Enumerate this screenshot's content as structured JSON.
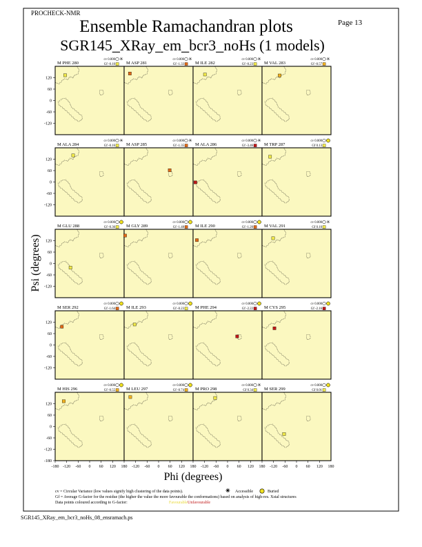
{
  "header": {
    "program": "PROCHECK-NMR",
    "page_label": "Page 13",
    "title": "Ensemble Ramachandran plots",
    "subtitle": "SGR145_XRay_em_bcr3_noHs (1 models)"
  },
  "footer": {
    "filename": "SGR145_XRay_em_bcr3_noHs_08_ensramach.ps",
    "legend_line1": "cv = Circular Variance (low values signify high clustering of the data points).",
    "legend_accessible": "Accessible",
    "legend_buried": "Buried",
    "legend_line2": "Gf = Average G-factor for the residue (the higher the value the more favourable the conformations) based on analysis of high-res. Xstal structures",
    "legend_line3": "Data points coloured according to G-factor:",
    "legend_favourable": "Favourable",
    "legend_unfavourable": "Unfavourable"
  },
  "colors": {
    "panel_bg": "#fbf8c0",
    "favourable": "#f0e84a",
    "unfavourable": "#c01818",
    "accessible_symbol": "#000000",
    "buried_symbol": "#f0e020",
    "region_outline": "#000000"
  },
  "chart_data": {
    "type": "scatter",
    "xlabel": "Phi (degrees)",
    "ylabel": "Psi (degrees)",
    "xlim": [
      -180,
      180
    ],
    "ylim": [
      -180,
      180
    ],
    "x_ticks": [
      "-180",
      "-120",
      "-60",
      "0",
      "60",
      "120",
      "180"
    ],
    "y_ticks": [
      "120",
      "60",
      "0",
      "-60",
      "-120"
    ],
    "y_ticks_bottom": [
      "120",
      "60",
      "0",
      "-60",
      "-120",
      "-180"
    ],
    "grid": false,
    "cv_label": "cv 0.000",
    "panels": [
      {
        "residue": "M PHE 280",
        "gf": "Gf -0.10",
        "gf_value": -0.1,
        "buried": false,
        "point": {
          "phi": -128,
          "psi": 133
        }
      },
      {
        "residue": "M ASP 281",
        "gf": "Gf -1.33",
        "gf_value": -1.33,
        "buried": false,
        "point": {
          "phi": -150,
          "psi": 142
        }
      },
      {
        "residue": "M ILE 282",
        "gf": "Gf -0.23",
        "gf_value": -0.23,
        "buried": false,
        "point": {
          "phi": -118,
          "psi": 137
        }
      },
      {
        "residue": "M VAL 283",
        "gf": "Gf -0.57",
        "gf_value": -0.57,
        "buried": false,
        "point": {
          "phi": -88,
          "psi": 132
        }
      },
      {
        "residue": "M ALA 284",
        "gf": "Gf -0.16",
        "gf_value": -0.16,
        "buried": false,
        "point": {
          "phi": -86,
          "psi": 140
        }
      },
      {
        "residue": "M ASP 285",
        "gf": "Gf -1.35",
        "gf_value": -1.35,
        "buried": false,
        "point": {
          "phi": 58,
          "psi": 62
        }
      },
      {
        "residue": "M ALA 286",
        "gf": "Gf -3.46",
        "gf_value": -3.46,
        "buried": false,
        "point": {
          "phi": -168,
          "psi": -2
        }
      },
      {
        "residue": "M TRP 287",
        "gf": "Gf 0.13",
        "gf_value": 0.13,
        "buried": true,
        "point": {
          "phi": -138,
          "psi": 133
        }
      },
      {
        "residue": "M GLU 288",
        "gf": "Gf -0.36",
        "gf_value": -0.36,
        "buried": true,
        "point": {
          "phi": -100,
          "psi": -22
        }
      },
      {
        "residue": "M GLY 289",
        "gf": "Gf -1.48",
        "gf_value": -1.48,
        "buried": true,
        "point": {
          "phi": -175,
          "psi": 147
        }
      },
      {
        "residue": "M ILE 290",
        "gf": "Gf -1.20",
        "gf_value": -1.2,
        "buried": true,
        "point": {
          "phi": -160,
          "psi": 123
        }
      },
      {
        "residue": "M VAL 291",
        "gf": "Gf 0.10",
        "gf_value": 0.1,
        "buried": false,
        "point": {
          "phi": -122,
          "psi": 133
        }
      },
      {
        "residue": "M SER 292",
        "gf": "Gf -1.64",
        "gf_value": -1.64,
        "buried": true,
        "point": {
          "phi": -145,
          "psi": 96
        }
      },
      {
        "residue": "M ILE 293",
        "gf": "Gf -0.23",
        "gf_value": -0.23,
        "buried": true,
        "point": {
          "phi": -125,
          "psi": 108
        }
      },
      {
        "residue": "M PHE 294",
        "gf": "Gf -2.22",
        "gf_value": -2.22,
        "buried": true,
        "point": {
          "phi": 50,
          "psi": 45
        }
      },
      {
        "residue": "M CYS 295",
        "gf": "Gf -2.16",
        "gf_value": -2.16,
        "buried": true,
        "point": {
          "phi": -115,
          "psi": 88
        }
      },
      {
        "residue": "M HIS 296",
        "gf": "Gf -0.55",
        "gf_value": -0.55,
        "buried": true,
        "point": {
          "phi": -135,
          "psi": 133
        }
      },
      {
        "residue": "M LEU 297",
        "gf": "Gf -0.74",
        "gf_value": -0.74,
        "buried": true,
        "point": {
          "phi": -148,
          "psi": 155
        }
      },
      {
        "residue": "M PRO 298",
        "gf": "Gf 0.34",
        "gf_value": 0.34,
        "buried": false,
        "point": {
          "phi": -65,
          "psi": 150
        }
      },
      {
        "residue": "M SER 299",
        "gf": "Gf 0.01",
        "gf_value": 0.01,
        "buried": true,
        "point": {
          "phi": -65,
          "psi": -40
        }
      }
    ]
  }
}
